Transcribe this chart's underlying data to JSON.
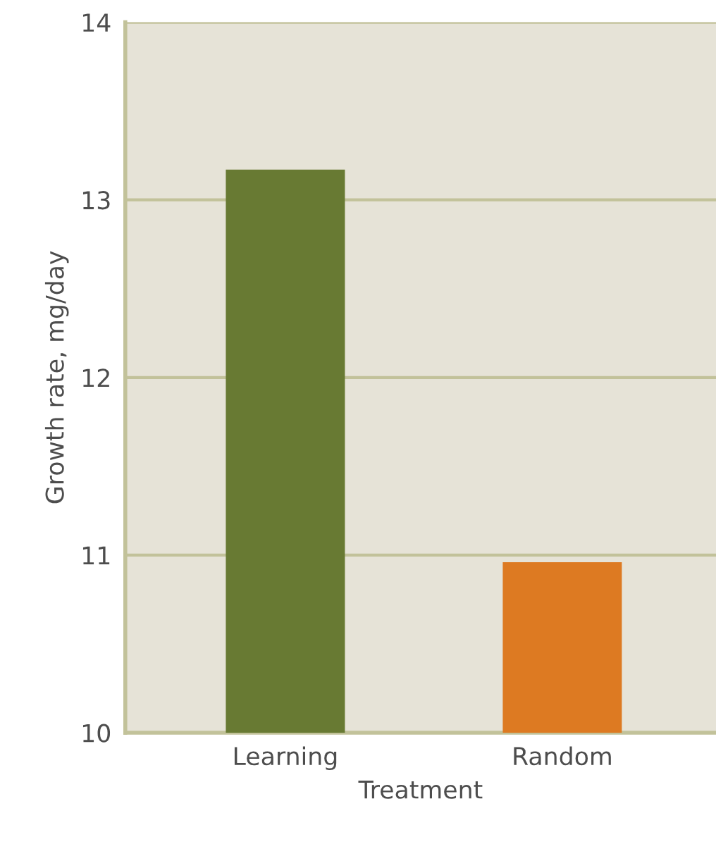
{
  "chart_data": {
    "type": "bar",
    "xlabel": "Treatment",
    "ylabel": "Growth rate, mg/day",
    "categories": [
      "Learning",
      "Random"
    ],
    "values": [
      13.17,
      10.96
    ],
    "colors": [
      "#687a33",
      "#dd7a22"
    ],
    "ylim": [
      10,
      14
    ],
    "yticks": [
      10,
      11,
      12,
      13,
      14
    ],
    "grid": "y"
  }
}
